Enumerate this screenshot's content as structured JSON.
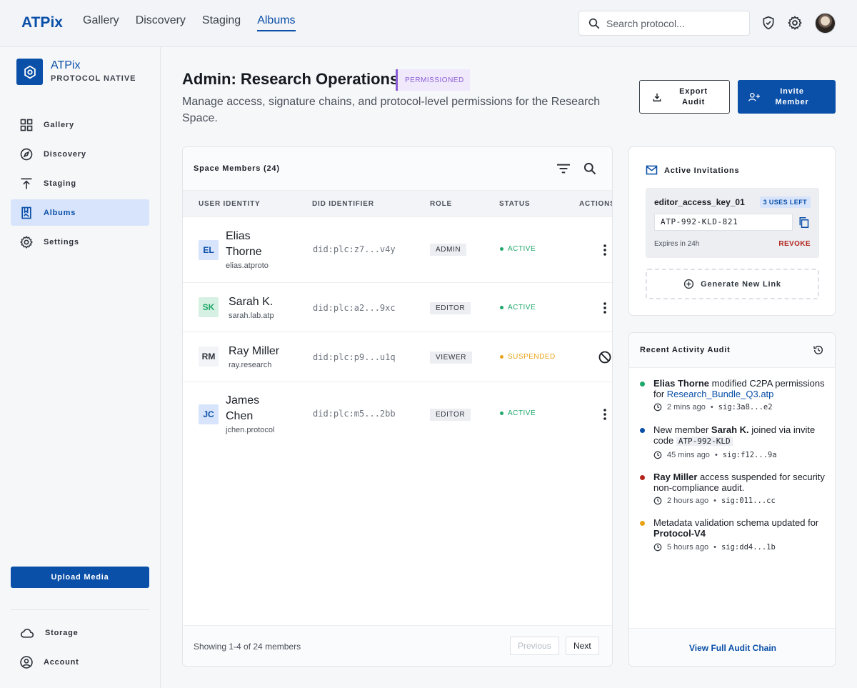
{
  "topbar": {
    "brand": "ATPix",
    "nav": [
      "Gallery",
      "Discovery",
      "Staging",
      "Albums"
    ],
    "active_nav": "Albums",
    "search_placeholder": "Search protocol..."
  },
  "sidebar": {
    "brand_name": "ATPix",
    "brand_sub": "PROTOCOL NATIVE",
    "items": [
      {
        "label": "Gallery",
        "icon": "grid-icon"
      },
      {
        "label": "Discovery",
        "icon": "compass-icon"
      },
      {
        "label": "Staging",
        "icon": "upload-arrow-icon"
      },
      {
        "label": "Albums",
        "icon": "album-icon",
        "active": true
      },
      {
        "label": "Settings",
        "icon": "gear-icon"
      }
    ],
    "upload_label": "Upload Media",
    "bottom": [
      {
        "label": "Storage",
        "icon": "cloud-icon"
      },
      {
        "label": "Account",
        "icon": "account-icon"
      }
    ]
  },
  "header": {
    "title": "Admin: Research Operations",
    "badge": "PERMISSIONED",
    "description": "Manage access, signature chains, and protocol-level permissions for the Research Space.",
    "export_label": "Export Audit",
    "invite_label": "Invite Member"
  },
  "members": {
    "title": "Space Members (24)",
    "columns": [
      "USER IDENTITY",
      "DID IDENTIFIER",
      "ROLE",
      "STATUS",
      "ACTIONS"
    ],
    "rows": [
      {
        "initials": "EL",
        "name": "Elias Thorne",
        "handle": "elias.atproto",
        "did": "did:plc:z7...v4y",
        "role": "ADMIN",
        "status": "ACTIVE"
      },
      {
        "initials": "SK",
        "name": "Sarah K.",
        "handle": "sarah.lab.atp",
        "did": "did:plc:a2...9xc",
        "role": "EDITOR",
        "status": "ACTIVE"
      },
      {
        "initials": "RM",
        "name": "Ray Miller",
        "handle": "ray.research",
        "did": "did:plc:p9...u1q",
        "role": "VIEWER",
        "status": "SUSPENDED"
      },
      {
        "initials": "JC",
        "name": "James Chen",
        "handle": "jchen.protocol",
        "did": "did:plc:m5...2bb",
        "role": "EDITOR",
        "status": "ACTIVE"
      }
    ],
    "footer_text": "Showing 1-4 of 24 members",
    "prev_label": "Previous",
    "next_label": "Next"
  },
  "invitations": {
    "title": "Active Invitations",
    "key_name": "editor_access_key_01",
    "uses": "3 USES LEFT",
    "code": "ATP-992-KLD-821",
    "expires": "Expires in 24h",
    "revoke": "REVOKE",
    "generate": "Generate New Link"
  },
  "audit": {
    "title": "Recent Activity Audit",
    "items": [
      {
        "actor": "Elias Thorne",
        "text": " modified C2PA permissions for ",
        "link": "Research_Bundle_Q3.atp",
        "time": "2 mins ago",
        "sig": "sig:3a8...e2",
        "color": "#1fa86a"
      },
      {
        "pre": "New member ",
        "actor": "Sarah K.",
        "text": " joined via invite code ",
        "code": "ATP-992-KLD",
        "time": "45 mins ago",
        "sig": "sig:f12...9a",
        "color": "#0a4fa8"
      },
      {
        "actor": "Ray Miller",
        "text": " access suspended for security non-compliance audit.",
        "time": "2 hours ago",
        "sig": "sig:011...cc",
        "color": "#b3261e"
      },
      {
        "pre": "Metadata validation schema updated for ",
        "actor": "Protocol-V4",
        "time": "5 hours ago",
        "sig": "sig:dd4...1b",
        "color": "#e8a317"
      }
    ],
    "footer": "View Full Audit Chain"
  },
  "colors": {
    "accent": "#0a4fa8",
    "active": "#1fa86a",
    "suspended": "#e8a317",
    "danger": "#b3261e",
    "permissioned": "#8a5cd6"
  }
}
